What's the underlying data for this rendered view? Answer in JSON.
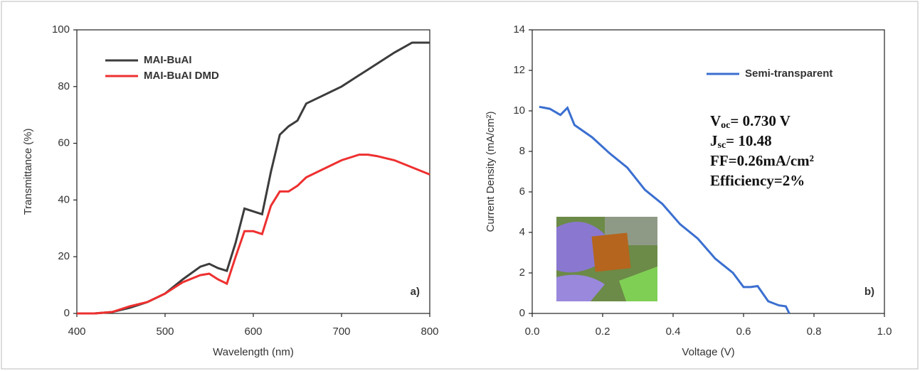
{
  "chart_data": [
    {
      "type": "line",
      "x_label": "Wavelength (nm)",
      "y_label": "Transmittance (%)",
      "annotation": "a)",
      "x": [
        400,
        420,
        440,
        460,
        480,
        500,
        520,
        540,
        550,
        560,
        570,
        580,
        590,
        600,
        610,
        620,
        630,
        640,
        650,
        660,
        680,
        700,
        720,
        730,
        740,
        760,
        780,
        800
      ],
      "series": [
        {
          "name": "MAI-BuAI",
          "color": "#3c3c3c",
          "values": [
            0,
            0,
            0.5,
            2,
            4,
            7,
            12,
            16.5,
            17.5,
            16,
            15,
            25,
            37,
            36,
            35,
            50,
            63,
            66,
            68,
            74,
            77,
            80,
            84,
            86,
            88,
            92,
            95.5,
            95.5
          ]
        },
        {
          "name": "MAI-BuAI DMD",
          "color": "#ee3030",
          "values": [
            0,
            0,
            0.5,
            2.5,
            4,
            7,
            11,
            13.5,
            14,
            12,
            10.5,
            20,
            29,
            29,
            28,
            38,
            43,
            43,
            45,
            48,
            51,
            54,
            56,
            56,
            55.5,
            54,
            51.5,
            49
          ]
        }
      ],
      "xlim": [
        400,
        800
      ],
      "xticks": [
        400,
        500,
        600,
        700,
        800
      ],
      "ylim": [
        0,
        100
      ],
      "yticks": [
        0,
        20,
        40,
        60,
        80,
        100
      ]
    },
    {
      "type": "line",
      "x_label": "Voltage (V)",
      "y_label": "Current Density (mA/cm²)",
      "annotation": "b)",
      "x": [
        0.02,
        0.05,
        0.08,
        0.1,
        0.12,
        0.17,
        0.22,
        0.27,
        0.32,
        0.37,
        0.42,
        0.47,
        0.52,
        0.57,
        0.6,
        0.62,
        0.64,
        0.67,
        0.7,
        0.72,
        0.73
      ],
      "series": [
        {
          "name": "Semi-transparent",
          "color": "#3a6fd0",
          "values": [
            10.2,
            10.1,
            9.8,
            10.15,
            9.3,
            8.7,
            7.9,
            7.2,
            6.1,
            5.4,
            4.4,
            3.7,
            2.7,
            2.0,
            1.3,
            1.3,
            1.35,
            0.6,
            0.4,
            0.35,
            0
          ]
        }
      ],
      "xlim": [
        0,
        1
      ],
      "xticks": [
        {
          "value": 0,
          "label": "0.0"
        },
        0.2,
        0.4,
        0.6,
        0.8,
        {
          "value": 1,
          "label": "1.0"
        }
      ],
      "ylim": [
        0,
        14
      ],
      "yticks": [
        0,
        2,
        4,
        6,
        8,
        10,
        12,
        14
      ],
      "parameters": [
        {
          "main": "V",
          "sub": "oc",
          "rest": "= 0.730 V"
        },
        {
          "main": "J",
          "sub": "sc",
          "rest": "= 10.48"
        },
        {
          "main": "FF=0.26mA/cm²"
        },
        {
          "main": "Efficiency=2%"
        }
      ]
    }
  ]
}
